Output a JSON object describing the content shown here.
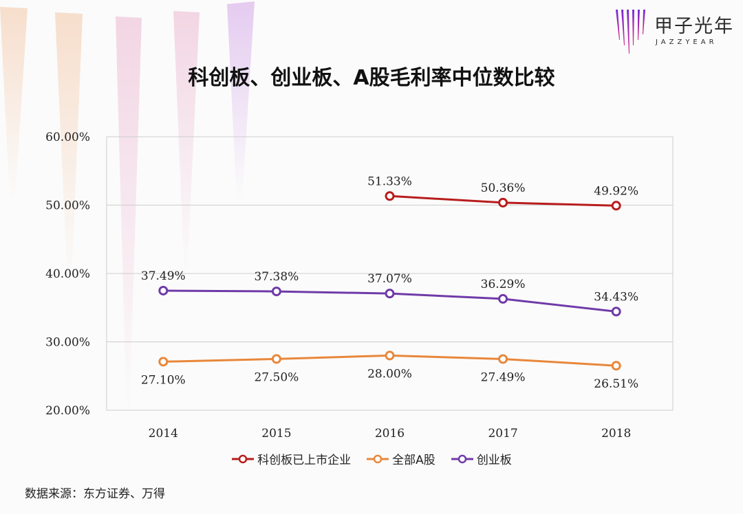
{
  "title": "科创板、创业板、A股毛利率中位数比较",
  "source": "数据来源：东方证券、万得",
  "logo": {
    "name_cn": "甲子光年",
    "name_en": "JAZZYEAR"
  },
  "colors": {
    "kechuang": "#b81c1c",
    "all_a": "#e8873a",
    "chuangye": "#6f3aa8",
    "grid": "#cccccc",
    "logo_gradient_top": "#7a2bd6",
    "logo_gradient_bottom": "#d12a8a"
  },
  "chart_data": {
    "type": "line",
    "title": "科创板、创业板、A股毛利率中位数比较",
    "categories": [
      "2014",
      "2015",
      "2016",
      "2017",
      "2018"
    ],
    "y_ticks": [
      "20.00%",
      "30.00%",
      "40.00%",
      "50.00%",
      "60.00%"
    ],
    "ylim": [
      20,
      60
    ],
    "grid": true,
    "legend_position": "bottom",
    "series": [
      {
        "name": "科创板已上市企业",
        "color": "#b81c1c",
        "values": [
          null,
          null,
          51.33,
          50.36,
          49.92
        ],
        "labels": [
          "",
          "",
          "51.33%",
          "50.36%",
          "49.92%"
        ],
        "label_position": "above"
      },
      {
        "name": "全部A股",
        "color": "#e8873a",
        "values": [
          27.1,
          27.5,
          28.0,
          27.49,
          26.51
        ],
        "labels": [
          "27.10%",
          "27.50%",
          "28.00%",
          "27.49%",
          "26.51%"
        ],
        "label_position": "below"
      },
      {
        "name": "创业板",
        "color": "#6f3aa8",
        "values": [
          37.49,
          37.38,
          37.07,
          36.29,
          34.43
        ],
        "labels": [
          "37.49%",
          "37.38%",
          "37.07%",
          "36.29%",
          "34.43%"
        ],
        "label_position": "above"
      }
    ]
  }
}
